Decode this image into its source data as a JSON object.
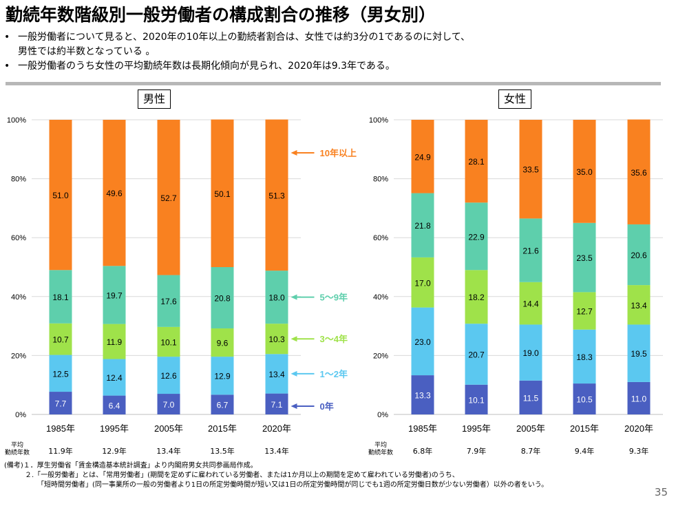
{
  "title": "勤続年数階級別一般労働者の構成割合の推移（男女別）",
  "bullets": [
    {
      "line1": "一般労働者について見ると、2020年の10年以上の勤続者割合は、女性では約3分の1であるのに対して、",
      "line2": "男性では約半数となっている 。"
    },
    {
      "line1": "一般労働者のうち女性の平均勤続年数は長期化傾向が見られ、2020年は9.3年である。",
      "line2": ""
    }
  ],
  "avg_label_line1": "平均",
  "avg_label_line2": "勤続年数",
  "notes": {
    "n1": "(備考)１．厚生労働省「賃金構造基本統計調査」より内閣府男女共同参画局作成。",
    "n2": "２.「一般労働者」とは、「常用労働者」(期間を定めずに雇われている労働者、または1か月以上の期間を定めて雇われている労働者)のうち、",
    "n3": "「短時間労働者」(同一事業所の一般の労働者より1日の所定労働時間が短い又は1日の所定労働時間が同じでも1週の所定労働日数が少ない労働者）以外の者をいう。"
  },
  "page_number": "35",
  "chart_data": [
    {
      "type": "bar",
      "stacked": true,
      "title": "男性",
      "categories": [
        "1985年",
        "1995年",
        "2005年",
        "2015年",
        "2020年"
      ],
      "ylim": [
        0,
        100
      ],
      "yticks": [
        "0%",
        "20%",
        "40%",
        "60%",
        "80%",
        "100%"
      ],
      "series": [
        {
          "name": "0年",
          "color": "#4a5fc1",
          "values": [
            7.7,
            6.4,
            7.0,
            6.7,
            7.1
          ]
        },
        {
          "name": "1～2年",
          "color": "#5bc8f0",
          "values": [
            12.5,
            12.4,
            12.6,
            12.9,
            13.4
          ]
        },
        {
          "name": "3～4年",
          "color": "#9fe24a",
          "values": [
            10.7,
            11.9,
            10.1,
            9.6,
            10.3
          ]
        },
        {
          "name": "5～9年",
          "color": "#5ecfac",
          "values": [
            18.1,
            19.7,
            17.6,
            20.8,
            18.0
          ]
        },
        {
          "name": "10年以上",
          "color": "#f98120",
          "values": [
            51.0,
            49.6,
            52.7,
            50.1,
            51.3
          ]
        }
      ],
      "avg_tenure": [
        "11.9年",
        "12.9年",
        "13.4年",
        "13.5年",
        "13.4年"
      ]
    },
    {
      "type": "bar",
      "stacked": true,
      "title": "女性",
      "categories": [
        "1985年",
        "1995年",
        "2005年",
        "2015年",
        "2020年"
      ],
      "ylim": [
        0,
        100
      ],
      "yticks": [
        "0%",
        "20%",
        "40%",
        "60%",
        "80%",
        "100%"
      ],
      "series": [
        {
          "color": "#4a5fc1",
          "values": [
            13.3,
            10.1,
            11.5,
            10.5,
            11.0
          ]
        },
        {
          "color": "#5bc8f0",
          "values": [
            23.0,
            20.7,
            19.0,
            18.3,
            19.5
          ]
        },
        {
          "color": "#9fe24a",
          "values": [
            17.0,
            18.2,
            14.4,
            12.7,
            13.4
          ]
        },
        {
          "color": "#5ecfac",
          "values": [
            21.8,
            22.9,
            21.6,
            23.5,
            20.6
          ]
        },
        {
          "color": "#f98120",
          "values": [
            24.9,
            28.1,
            33.5,
            35.0,
            35.6
          ]
        }
      ],
      "avg_tenure": [
        "6.8年",
        "7.9年",
        "8.7年",
        "9.4年",
        "9.3年"
      ]
    }
  ]
}
